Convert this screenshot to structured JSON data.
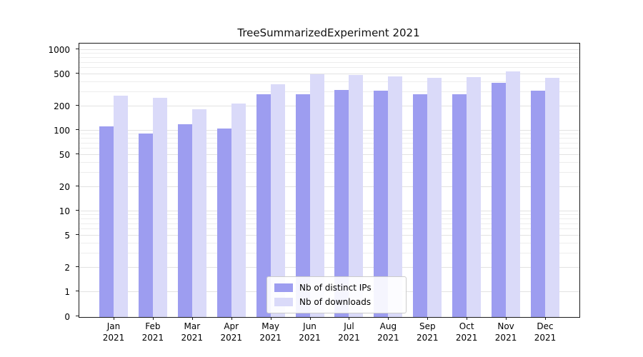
{
  "title": "TreeSummarizedExperiment 2021",
  "chart_data": {
    "type": "bar",
    "title": "TreeSummarizedExperiment 2021",
    "scale": "symlog",
    "grid": true,
    "legend_position": "lower center",
    "ylim": [
      0,
      1000
    ],
    "yticks": [
      0,
      1,
      2,
      5,
      10,
      20,
      50,
      100,
      200,
      500,
      1000
    ],
    "categories": [
      "Jan\n2021",
      "Feb\n2021",
      "Mar\n2021",
      "Apr\n2021",
      "May\n2021",
      "Jun\n2021",
      "Jul\n2021",
      "Aug\n2021",
      "Sep\n2021",
      "Oct\n2021",
      "Nov\n2021",
      "Dec\n2021"
    ],
    "series": [
      {
        "name": "Nb of distinct IPs",
        "color": "#9d9df0",
        "values": [
          113,
          92,
          120,
          107,
          285,
          282,
          320,
          312,
          285,
          280,
          390,
          310
        ]
      },
      {
        "name": "Nb of downloads",
        "color": "#dadaf9",
        "values": [
          270,
          255,
          185,
          215,
          375,
          505,
          495,
          470,
          455,
          465,
          540,
          450
        ]
      }
    ]
  }
}
